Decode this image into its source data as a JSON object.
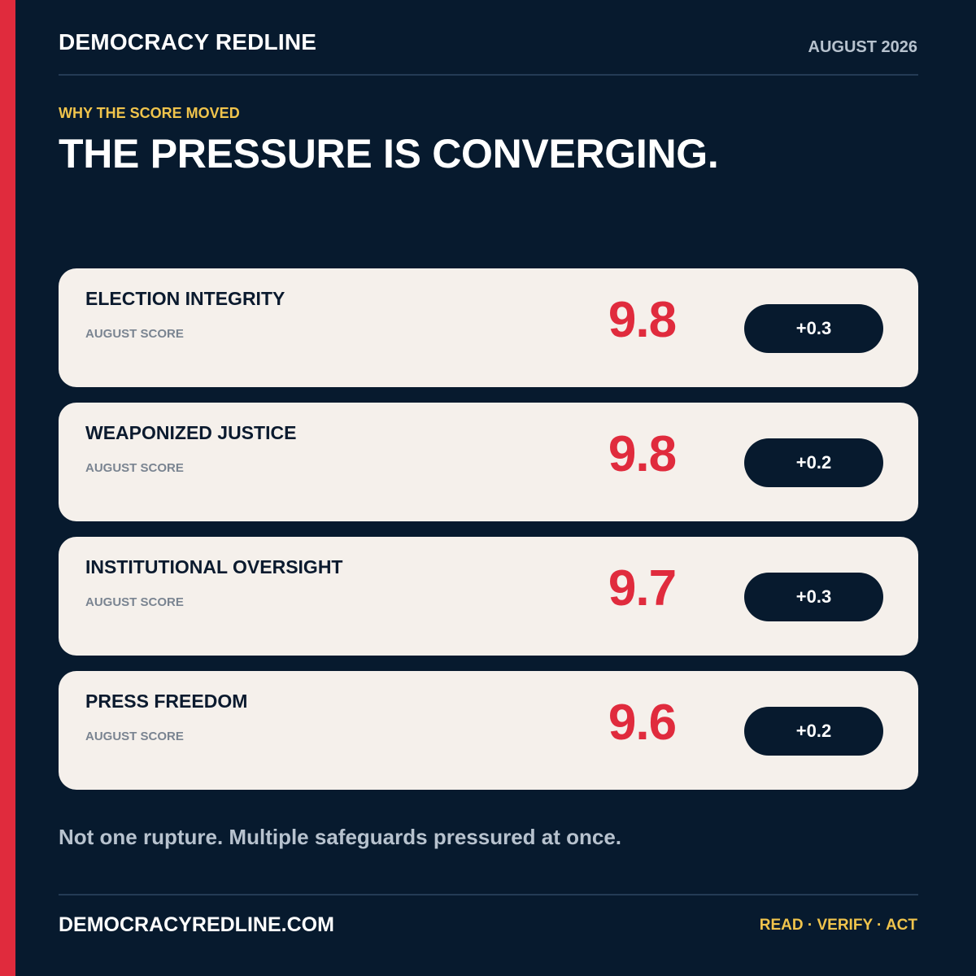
{
  "header": {
    "brand": "DEMOCRACY REDLINE",
    "date": "AUGUST 2026"
  },
  "intro": {
    "eyebrow": "WHY THE SCORE MOVED",
    "headline": "THE PRESSURE IS CONVERGING."
  },
  "scores": [
    {
      "title": "ELECTION INTEGRITY",
      "subtitle": "AUGUST SCORE",
      "score": "9.8",
      "delta": "+0.3"
    },
    {
      "title": "WEAPONIZED JUSTICE",
      "subtitle": "AUGUST SCORE",
      "score": "9.8",
      "delta": "+0.2"
    },
    {
      "title": "INSTITUTIONAL OVERSIGHT",
      "subtitle": "AUGUST SCORE",
      "score": "9.7",
      "delta": "+0.3"
    },
    {
      "title": "PRESS FREEDOM",
      "subtitle": "AUGUST SCORE",
      "score": "9.6",
      "delta": "+0.2"
    }
  ],
  "note": "Not one rupture. Multiple safeguards pressured at once.",
  "footer": {
    "site": "DEMOCRACYREDLINE.COM",
    "cta": "READ · VERIFY · ACT"
  },
  "colors": {
    "background": "#071a2e",
    "accent_red": "#e02b3d",
    "accent_gold": "#f0c44c",
    "card": "#f5f0eb"
  }
}
